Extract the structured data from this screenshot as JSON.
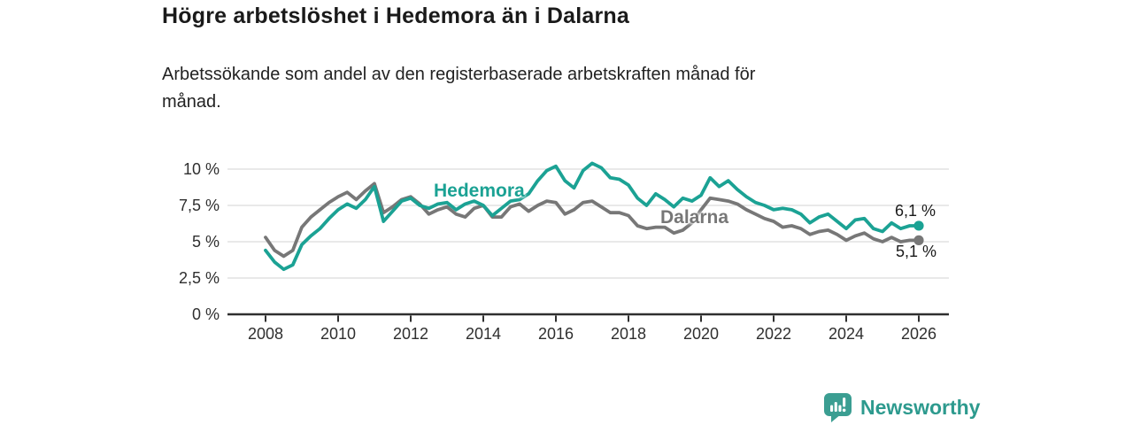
{
  "header": {
    "title": "Högre arbetslöshet i Hedemora än i Dalarna",
    "subtitle_lines": [
      "Arbetssökande som andel av den registerbaserade arbetskraften månad för",
      "månad."
    ]
  },
  "chart_data": {
    "type": "line",
    "title": "Högre arbetslöshet i Hedemora än i Dalarna",
    "xlabel": "",
    "ylabel": "Arbetssökande som andel av den registerbaserade arbetskraften",
    "xlim": [
      2007,
      2026.8
    ],
    "ylim": [
      0,
      10.5
    ],
    "grid": "horizontal",
    "legend": "inline-labels",
    "x": [
      2008,
      2008.25,
      2008.5,
      2008.75,
      2009,
      2009.25,
      2009.5,
      2009.75,
      2010,
      2010.25,
      2010.5,
      2010.75,
      2011,
      2011.25,
      2011.5,
      2011.75,
      2012,
      2012.25,
      2012.5,
      2012.75,
      2013,
      2013.25,
      2013.5,
      2013.75,
      2014,
      2014.25,
      2014.5,
      2014.75,
      2015,
      2015.25,
      2015.5,
      2015.75,
      2016,
      2016.25,
      2016.5,
      2016.75,
      2017,
      2017.25,
      2017.5,
      2017.75,
      2018,
      2018.25,
      2018.5,
      2018.75,
      2019,
      2019.25,
      2019.5,
      2019.75,
      2020,
      2020.25,
      2020.5,
      2020.75,
      2021,
      2021.25,
      2021.5,
      2021.75,
      2022,
      2022.25,
      2022.5,
      2022.75,
      2023,
      2023.25,
      2023.5,
      2023.75,
      2024,
      2024.25,
      2024.5,
      2024.75,
      2025,
      2025.25,
      2025.5,
      2025.75,
      2026
    ],
    "series": [
      {
        "name": "Hedemora",
        "color": "#1ba294",
        "end_label": "6,1 %",
        "end_value": 6.1,
        "values": [
          4.4,
          3.6,
          3.1,
          3.4,
          4.8,
          5.4,
          5.9,
          6.6,
          7.2,
          7.6,
          7.3,
          7.9,
          8.8,
          6.4,
          7.1,
          7.8,
          8.0,
          7.5,
          7.3,
          7.6,
          7.7,
          7.2,
          7.6,
          7.8,
          7.5,
          6.8,
          7.3,
          7.8,
          7.9,
          8.3,
          9.2,
          9.9,
          10.2,
          9.2,
          8.7,
          9.9,
          10.4,
          10.1,
          9.4,
          9.3,
          8.9,
          8.0,
          7.5,
          8.3,
          7.9,
          7.4,
          8.0,
          7.8,
          8.2,
          9.4,
          8.8,
          9.2,
          8.6,
          8.1,
          7.7,
          7.5,
          7.2,
          7.3,
          7.2,
          6.9,
          6.3,
          6.7,
          6.9,
          6.4,
          5.9,
          6.5,
          6.6,
          5.9,
          5.7,
          6.3,
          5.9,
          6.1,
          6.1
        ]
      },
      {
        "name": "Dalarna",
        "color": "#777777",
        "end_label": "5,1 %",
        "end_value": 5.1,
        "values": [
          5.3,
          4.4,
          4.0,
          4.4,
          6.0,
          6.7,
          7.2,
          7.7,
          8.1,
          8.4,
          7.9,
          8.5,
          9.0,
          7.0,
          7.4,
          7.9,
          8.1,
          7.6,
          6.9,
          7.2,
          7.4,
          6.9,
          6.7,
          7.3,
          7.5,
          6.7,
          6.7,
          7.4,
          7.6,
          7.1,
          7.5,
          7.8,
          7.7,
          6.9,
          7.2,
          7.7,
          7.8,
          7.4,
          7.0,
          7.0,
          6.8,
          6.1,
          5.9,
          6.0,
          6.0,
          5.6,
          5.8,
          6.3,
          7.2,
          8.0,
          7.9,
          7.8,
          7.6,
          7.2,
          6.9,
          6.6,
          6.4,
          6.0,
          6.1,
          5.9,
          5.5,
          5.7,
          5.8,
          5.5,
          5.1,
          5.4,
          5.6,
          5.2,
          5.0,
          5.3,
          5.0,
          5.1,
          5.1
        ]
      }
    ],
    "y_ticks": [
      {
        "value": 0,
        "label": "0 %"
      },
      {
        "value": 2.5,
        "label": "2,5 %"
      },
      {
        "value": 5,
        "label": "5 %"
      },
      {
        "value": 7.5,
        "label": "7,5 %"
      },
      {
        "value": 10,
        "label": "10 %"
      }
    ],
    "x_ticks": [
      {
        "value": 2008,
        "label": "2008"
      },
      {
        "value": 2010,
        "label": "2010"
      },
      {
        "value": 2012,
        "label": "2012"
      },
      {
        "value": 2014,
        "label": "2014"
      },
      {
        "value": 2016,
        "label": "2016"
      },
      {
        "value": 2018,
        "label": "2018"
      },
      {
        "value": 2020,
        "label": "2020"
      },
      {
        "value": 2022,
        "label": "2022"
      },
      {
        "value": 2024,
        "label": "2024"
      },
      {
        "value": 2026,
        "label": "2026"
      }
    ],
    "colors": {
      "grid": "#dcdcdc",
      "axis": "#2f2f2f",
      "annotation_text": "#1a1a1a"
    }
  },
  "footer": {
    "brand": "Newsworthy",
    "brand_color": "#2d9a8e",
    "logo_color": "#3b9e92",
    "logo": "newsworthy-bar-chart-bubble-icon"
  }
}
